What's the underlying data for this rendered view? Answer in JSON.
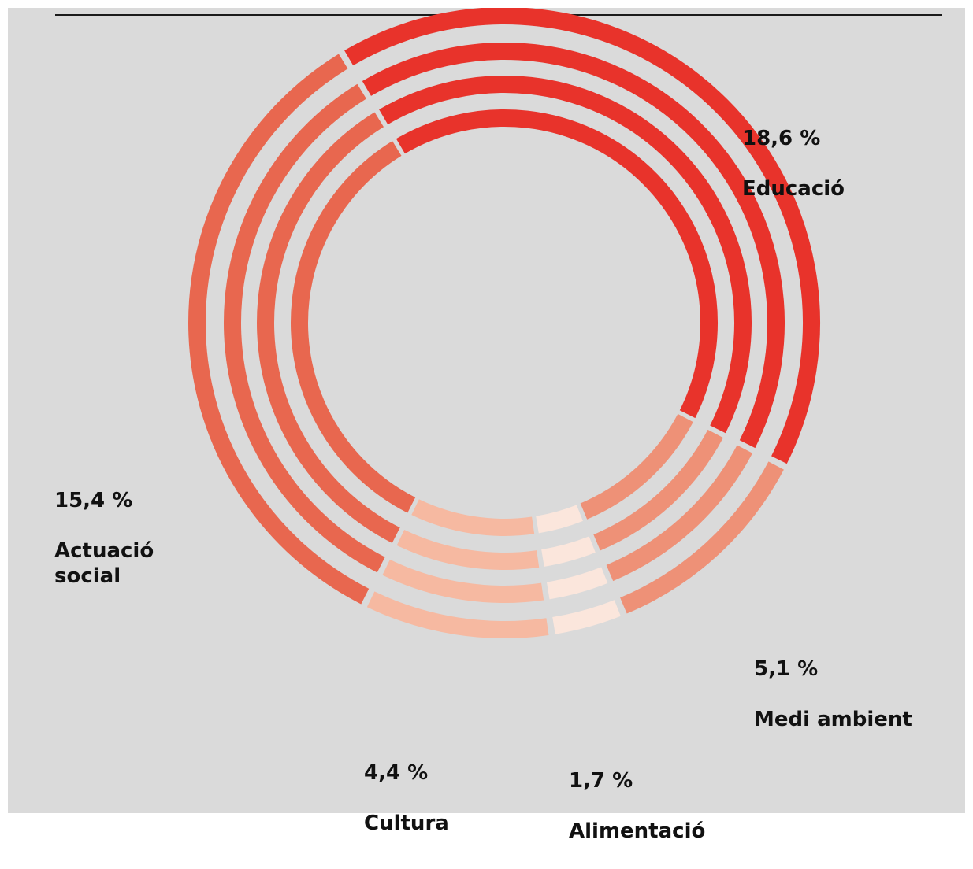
{
  "chart_data": {
    "type": "pie",
    "variant": "concentric-rings",
    "ring_count": 4,
    "start_angle_deg": -31,
    "gap_deg": 1.2,
    "categories": [
      "Educació",
      "Medi ambient",
      "Alimentació",
      "Cultura",
      "Actuació social"
    ],
    "values": [
      18.6,
      5.1,
      1.7,
      4.4,
      15.4
    ],
    "value_labels": [
      "18,6 %",
      "5,1 %",
      "1,7 %",
      "4,4 %",
      "15,4 %"
    ],
    "label_text": {
      "educacio": "Educació",
      "medi_ambient": "Medi ambient",
      "alimentacio": "Alimentació",
      "cultura": "Cultura",
      "actuacio_social": "Actuació\nsocial"
    },
    "colors": [
      "#e8332b",
      "#ee9177",
      "#fbe6dc",
      "#f6b9a1",
      "#e8674f"
    ],
    "background": "#dadada",
    "rule_color": "#1a1a1a"
  }
}
